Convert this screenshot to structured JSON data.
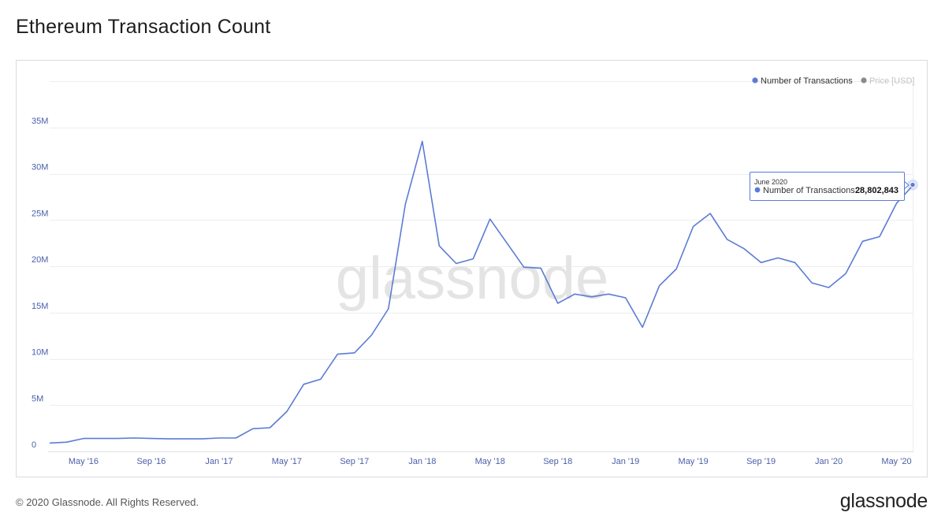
{
  "page": {
    "title": "Ethereum Transaction Count",
    "copyright": "© 2020 Glassnode. All Rights Reserved.",
    "logo_text": "glassnode",
    "watermark": "glassnode"
  },
  "tooltip": {
    "date": "June 2020",
    "series_label": "Number of Transactions:",
    "value_text": "28,802,843"
  },
  "colors": {
    "series": "#5b7bd5",
    "grid": "#ecedf0",
    "axis_text": "#4a5fa8",
    "watermark": "#e4e4e4",
    "legend_muted": "#8a8a8a"
  },
  "chart_data": {
    "type": "line",
    "title": "",
    "xlabel": "",
    "ylabel": "",
    "ylim": [
      0,
      40000000
    ],
    "yticks": [
      0,
      5000000,
      10000000,
      15000000,
      20000000,
      25000000,
      30000000,
      35000000
    ],
    "ytick_labels": [
      "0",
      "5M",
      "10M",
      "15M",
      "20M",
      "25M",
      "30M",
      "35M"
    ],
    "xtick_labels": [
      "May '16",
      "Sep '16",
      "Jan '17",
      "May '17",
      "Sep '17",
      "Jan '18",
      "May '18",
      "Sep '18",
      "Jan '19",
      "May '19",
      "Sep '19",
      "Jan '20",
      "May '20"
    ],
    "xtick_dates": [
      "2016-05",
      "2016-09",
      "2017-01",
      "2017-05",
      "2017-09",
      "2018-01",
      "2018-05",
      "2018-09",
      "2019-01",
      "2019-05",
      "2019-09",
      "2020-01",
      "2020-05"
    ],
    "grid": true,
    "legend_position": "top-right",
    "legend": [
      {
        "name": "Number of Transactions",
        "color": "#5b7bd5",
        "active": true
      },
      {
        "name": "Price [USD]",
        "color": "#8a8a8a",
        "active": false
      }
    ],
    "series": [
      {
        "name": "Number of Transactions",
        "x": [
          "2016-03",
          "2016-04",
          "2016-05",
          "2016-06",
          "2016-07",
          "2016-08",
          "2016-09",
          "2016-10",
          "2016-11",
          "2016-12",
          "2017-01",
          "2017-02",
          "2017-03",
          "2017-04",
          "2017-05",
          "2017-06",
          "2017-07",
          "2017-08",
          "2017-09",
          "2017-10",
          "2017-11",
          "2017-12",
          "2018-01",
          "2018-02",
          "2018-03",
          "2018-04",
          "2018-05",
          "2018-06",
          "2018-07",
          "2018-08",
          "2018-09",
          "2018-10",
          "2018-11",
          "2018-12",
          "2019-01",
          "2019-02",
          "2019-03",
          "2019-04",
          "2019-05",
          "2019-06",
          "2019-07",
          "2019-08",
          "2019-09",
          "2019-10",
          "2019-11",
          "2019-12",
          "2020-01",
          "2020-02",
          "2020-03",
          "2020-04",
          "2020-05",
          "2020-06"
        ],
        "values": [
          900000,
          1000000,
          1400000,
          1400000,
          1400000,
          1450000,
          1400000,
          1350000,
          1350000,
          1350000,
          1450000,
          1450000,
          2450000,
          2550000,
          4300000,
          7250000,
          7800000,
          10500000,
          10650000,
          12550000,
          15400000,
          26700000,
          33500000,
          22200000,
          20300000,
          20800000,
          25100000,
          22500000,
          19900000,
          19800000,
          16000000,
          17000000,
          16700000,
          17000000,
          16600000,
          13400000,
          17900000,
          19700000,
          24300000,
          25700000,
          22900000,
          21900000,
          20400000,
          20900000,
          20400000,
          18200000,
          17700000,
          19200000,
          22700000,
          23200000,
          26800000,
          28802843
        ]
      }
    ]
  }
}
